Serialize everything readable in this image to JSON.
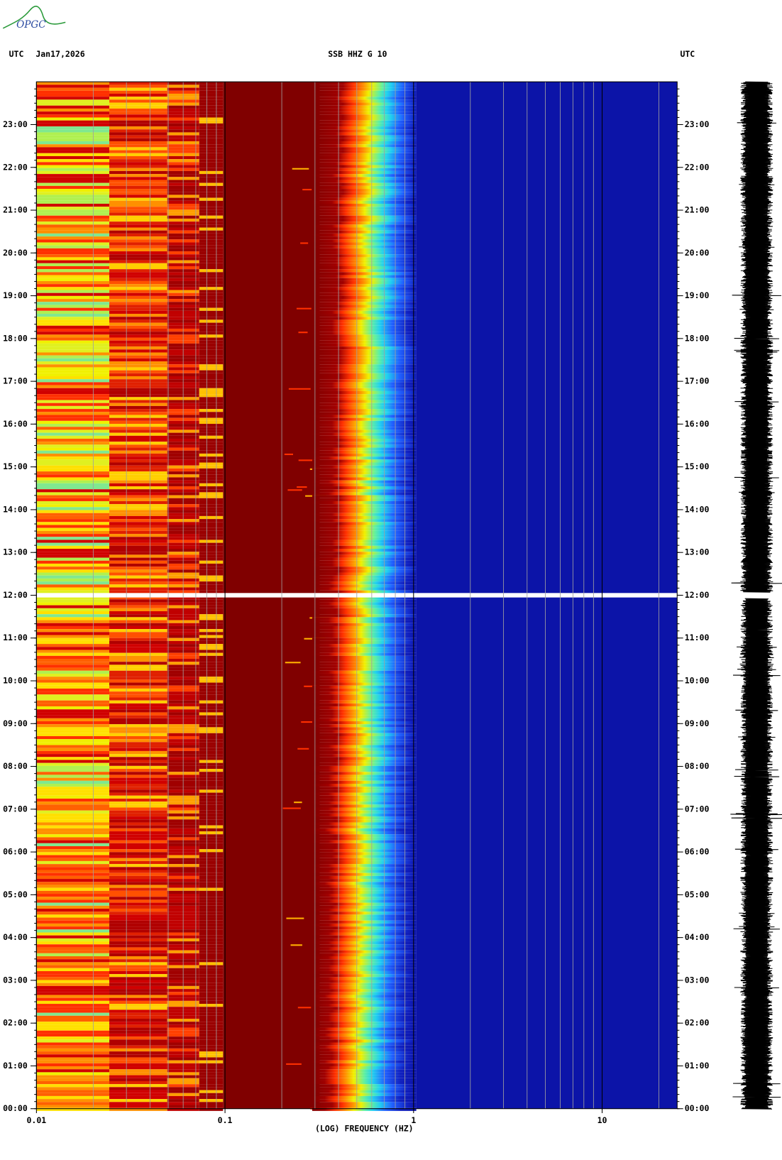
{
  "logo": "OPGC",
  "chart_data": {
    "type": "spectrogram",
    "title": "SSB HHZ G 10",
    "left_label": "UTC",
    "date": "Jan17,2026",
    "right_label": "UTC",
    "xlabel": "(LOG) FREQUENCY (HZ)",
    "xscale": "log",
    "xlim": [
      0.01,
      25
    ],
    "xticks": [
      0.01,
      0.1,
      1,
      10
    ],
    "ylim": [
      0,
      24
    ],
    "yticks": [
      {
        "value": 0,
        "label": "00:00"
      },
      {
        "value": 1,
        "label": "01:00"
      },
      {
        "value": 2,
        "label": "02:00"
      },
      {
        "value": 3,
        "label": "03:00"
      },
      {
        "value": 4,
        "label": "04:00"
      },
      {
        "value": 5,
        "label": "05:00"
      },
      {
        "value": 6,
        "label": "06:00"
      },
      {
        "value": 7,
        "label": "07:00"
      },
      {
        "value": 8,
        "label": "08:00"
      },
      {
        "value": 9,
        "label": "09:00"
      },
      {
        "value": 10,
        "label": "10:00"
      },
      {
        "value": 11,
        "label": "11:00"
      },
      {
        "value": 12,
        "label": "12:00"
      },
      {
        "value": 13,
        "label": "13:00"
      },
      {
        "value": 14,
        "label": "14:00"
      },
      {
        "value": 15,
        "label": "15:00"
      },
      {
        "value": 16,
        "label": "16:00"
      },
      {
        "value": 17,
        "label": "17:00"
      },
      {
        "value": 18,
        "label": "18:00"
      },
      {
        "value": 19,
        "label": "19:00"
      },
      {
        "value": 20,
        "label": "20:00"
      },
      {
        "value": 21,
        "label": "21:00"
      },
      {
        "value": 22,
        "label": "22:00"
      },
      {
        "value": 23,
        "label": "23:00"
      }
    ]
  }
}
